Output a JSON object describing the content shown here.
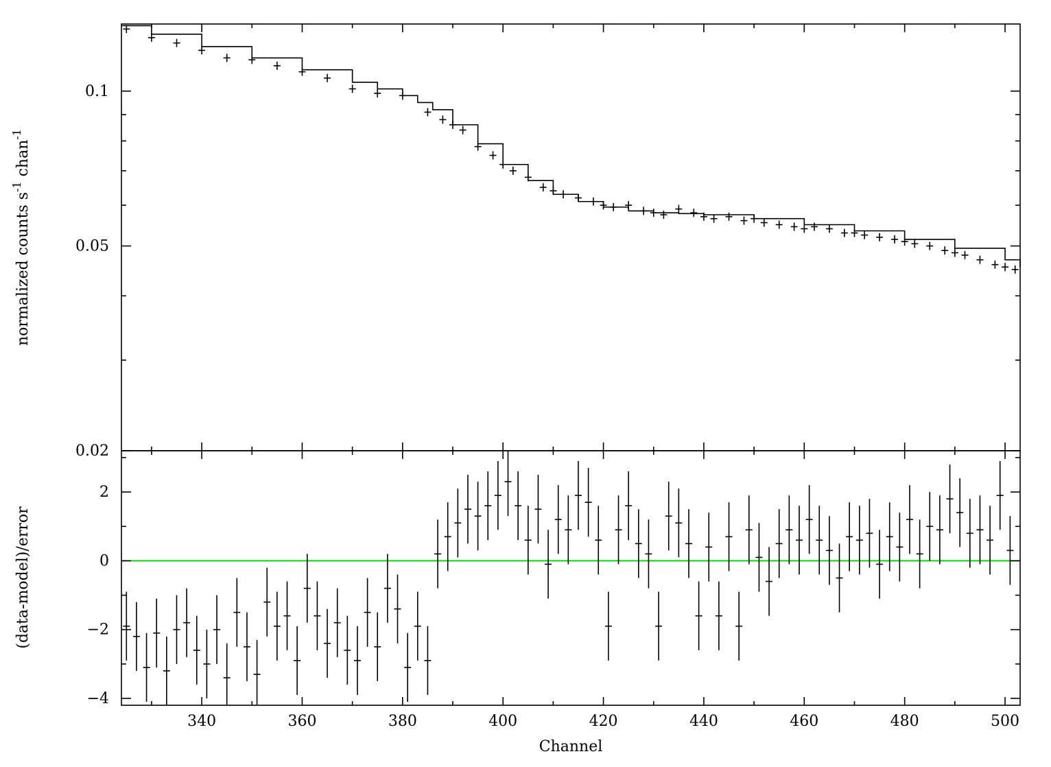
{
  "chart_data": [
    {
      "type": "scatter",
      "panel": "top",
      "title": "",
      "ylabel": "normalized counts s",
      "ylabel_sup1": "-1",
      "ylabel_mid": " chan",
      "ylabel_sup2": "-1",
      "yscale": "log",
      "xlim": [
        324,
        503
      ],
      "ylim": [
        0.02,
        0.135
      ],
      "xticks": [
        340,
        360,
        380,
        400,
        420,
        440,
        460,
        480,
        500
      ],
      "ytick_labels": [
        {
          "value": 0.1,
          "label": "0.1"
        },
        {
          "value": 0.05,
          "label": "0.05"
        },
        {
          "value": 0.02,
          "label": "0.02"
        }
      ],
      "yminor": [
        0.03,
        0.04,
        0.06,
        0.07,
        0.08,
        0.09
      ],
      "series": [
        {
          "kind": "data",
          "x": [
            325,
            330,
            335,
            340,
            345,
            350,
            355,
            360,
            365,
            370,
            375,
            380,
            385,
            388,
            390,
            392,
            395,
            398,
            400,
            402,
            405,
            408,
            410,
            412,
            415,
            418,
            420,
            422,
            425,
            428,
            430,
            432,
            435,
            438,
            440,
            442,
            445,
            448,
            450,
            452,
            455,
            458,
            460,
            462,
            465,
            468,
            470,
            472,
            475,
            478,
            480,
            482,
            485,
            488,
            490,
            492,
            495,
            498,
            500,
            502
          ],
          "y": [
            0.132,
            0.127,
            0.124,
            0.12,
            0.116,
            0.115,
            0.112,
            0.109,
            0.106,
            0.101,
            0.099,
            0.098,
            0.091,
            0.088,
            0.086,
            0.084,
            0.078,
            0.075,
            0.072,
            0.07,
            0.068,
            0.065,
            0.064,
            0.063,
            0.062,
            0.061,
            0.06,
            0.0595,
            0.06,
            0.0585,
            0.058,
            0.0575,
            0.059,
            0.058,
            0.057,
            0.0565,
            0.057,
            0.056,
            0.0565,
            0.0555,
            0.055,
            0.0545,
            0.054,
            0.0545,
            0.054,
            0.053,
            0.053,
            0.0525,
            0.052,
            0.0515,
            0.051,
            0.0505,
            0.05,
            0.049,
            0.0485,
            0.048,
            0.047,
            0.046,
            0.0455,
            0.045
          ]
        },
        {
          "kind": "model",
          "x": [
            324,
            330,
            340,
            350,
            360,
            370,
            375,
            380,
            383,
            386,
            390,
            395,
            400,
            405,
            410,
            415,
            420,
            425,
            430,
            435,
            440,
            450,
            460,
            470,
            480,
            490,
            500,
            503
          ],
          "y": [
            0.134,
            0.129,
            0.122,
            0.116,
            0.11,
            0.104,
            0.101,
            0.098,
            0.095,
            0.092,
            0.086,
            0.079,
            0.072,
            0.067,
            0.063,
            0.061,
            0.0595,
            0.0585,
            0.058,
            0.0578,
            0.0575,
            0.0565,
            0.055,
            0.0535,
            0.0515,
            0.0495,
            0.047,
            0.0455
          ]
        }
      ]
    },
    {
      "type": "scatter",
      "panel": "bottom",
      "title": "",
      "xlabel": "Channel",
      "ylabel": "(data-model)/error",
      "xlim": [
        324,
        503
      ],
      "ylim": [
        -4.2,
        3.2
      ],
      "yticks": [
        -4,
        -2,
        0,
        2
      ],
      "xticks": [
        340,
        360,
        380,
        400,
        420,
        440,
        460,
        480,
        500
      ],
      "zero_line_color": "#00dd00",
      "series": [
        {
          "kind": "residuals",
          "x": [
            325,
            327,
            329,
            331,
            333,
            335,
            337,
            339,
            341,
            343,
            345,
            347,
            349,
            351,
            353,
            355,
            357,
            359,
            361,
            363,
            365,
            367,
            369,
            371,
            373,
            375,
            377,
            379,
            381,
            383,
            385,
            387,
            389,
            391,
            393,
            395,
            397,
            399,
            401,
            403,
            405,
            407,
            409,
            411,
            413,
            415,
            417,
            419,
            421,
            423,
            425,
            427,
            429,
            431,
            433,
            435,
            437,
            439,
            441,
            443,
            445,
            447,
            449,
            451,
            453,
            455,
            457,
            459,
            461,
            463,
            465,
            467,
            469,
            471,
            473,
            475,
            477,
            479,
            481,
            483,
            485,
            487,
            489,
            491,
            493,
            495,
            497,
            499,
            501
          ],
          "y": [
            -1.9,
            -2.2,
            -3.1,
            -2.1,
            -3.2,
            -2.0,
            -1.8,
            -2.6,
            -3.0,
            -2.0,
            -3.4,
            -1.5,
            -2.5,
            -3.3,
            -1.2,
            -1.9,
            -1.6,
            -2.9,
            -0.8,
            -1.6,
            -2.4,
            -1.8,
            -2.6,
            -2.9,
            -1.5,
            -2.5,
            -0.8,
            -1.4,
            -3.1,
            -1.9,
            -2.9,
            0.2,
            0.7,
            1.1,
            1.5,
            1.3,
            1.6,
            1.9,
            2.3,
            1.6,
            0.6,
            1.5,
            -0.1,
            1.2,
            0.9,
            1.9,
            1.7,
            0.6,
            -1.9,
            0.9,
            1.6,
            0.5,
            0.2,
            -1.9,
            1.3,
            1.1,
            0.5,
            -1.6,
            0.4,
            -1.6,
            0.7,
            -1.9,
            0.9,
            0.1,
            -0.6,
            0.5,
            0.9,
            0.6,
            1.2,
            0.6,
            0.3,
            -0.5,
            0.7,
            0.6,
            0.8,
            -0.1,
            0.7,
            0.4,
            1.2,
            0.2,
            1.0,
            0.9,
            1.8,
            1.4,
            0.8,
            0.9,
            0.6,
            1.9,
            0.3
          ],
          "err": 1.0
        }
      ]
    }
  ]
}
